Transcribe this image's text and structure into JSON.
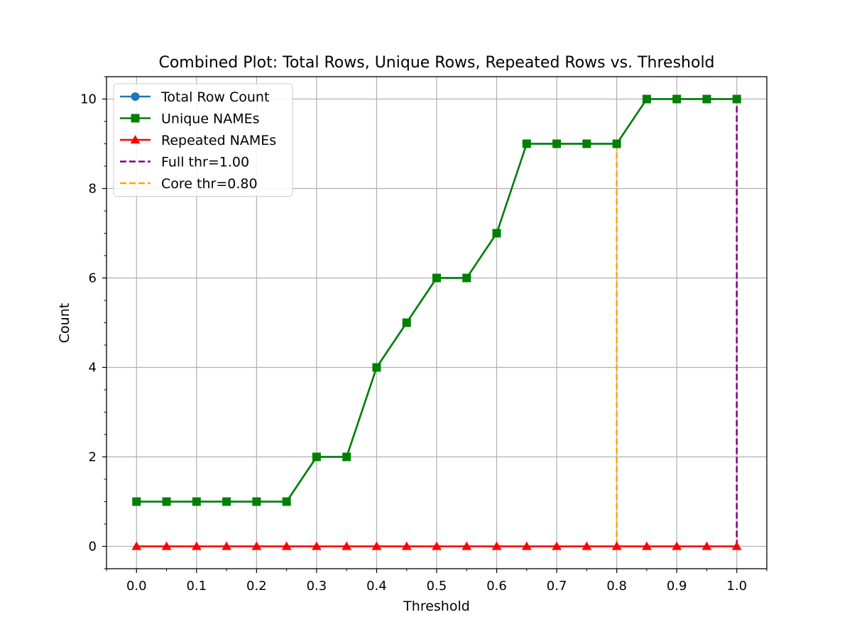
{
  "chart_data": {
    "type": "line",
    "title": "Combined Plot: Total Rows, Unique Rows, Repeated Rows vs. Threshold",
    "xlabel": "Threshold",
    "ylabel": "Count",
    "xlim": [
      -0.05,
      1.05
    ],
    "ylim": [
      -0.5,
      10.5
    ],
    "xticks": [
      0.0,
      0.1,
      0.2,
      0.3,
      0.4,
      0.5,
      0.6,
      0.7,
      0.8,
      0.9,
      1.0
    ],
    "xtick_labels": [
      "0.0",
      "0.1",
      "0.2",
      "0.3",
      "0.4",
      "0.5",
      "0.6",
      "0.7",
      "0.8",
      "0.9",
      "1.0"
    ],
    "yticks": [
      0,
      2,
      4,
      6,
      8,
      10
    ],
    "ytick_labels": [
      "0",
      "2",
      "4",
      "6",
      "8",
      "10"
    ],
    "grid": true,
    "legend_position": "upper-left",
    "x": [
      0.0,
      0.05,
      0.1,
      0.15,
      0.2,
      0.25,
      0.3,
      0.35,
      0.4,
      0.45,
      0.5,
      0.55,
      0.6,
      0.65,
      0.7,
      0.75,
      0.8,
      0.85,
      0.9,
      0.95,
      1.0
    ],
    "series": [
      {
        "name": "Total Row Count",
        "color": "#1f77b4",
        "marker": "circle",
        "values": [
          1,
          1,
          1,
          1,
          1,
          1,
          2,
          2,
          4,
          5,
          6,
          6,
          7,
          9,
          9,
          9,
          9,
          10,
          10,
          10,
          10
        ]
      },
      {
        "name": "Unique NAMEs",
        "color": "#008000",
        "marker": "square",
        "values": [
          1,
          1,
          1,
          1,
          1,
          1,
          2,
          2,
          4,
          5,
          6,
          6,
          7,
          9,
          9,
          9,
          9,
          10,
          10,
          10,
          10
        ]
      },
      {
        "name": "Repeated NAMEs",
        "color": "#ff0000",
        "marker": "triangle",
        "values": [
          0,
          0,
          0,
          0,
          0,
          0,
          0,
          0,
          0,
          0,
          0,
          0,
          0,
          0,
          0,
          0,
          0,
          0,
          0,
          0,
          0
        ]
      }
    ],
    "vertical_lines": [
      {
        "name": "Full thr=1.00",
        "x": 1.0,
        "y_from": 0,
        "y_to": 10,
        "color": "#800080",
        "style": "dashed"
      },
      {
        "name": "Core thr=0.80",
        "x": 0.8,
        "y_from": 0,
        "y_to": 9,
        "color": "#ffa500",
        "style": "dashed"
      }
    ]
  }
}
